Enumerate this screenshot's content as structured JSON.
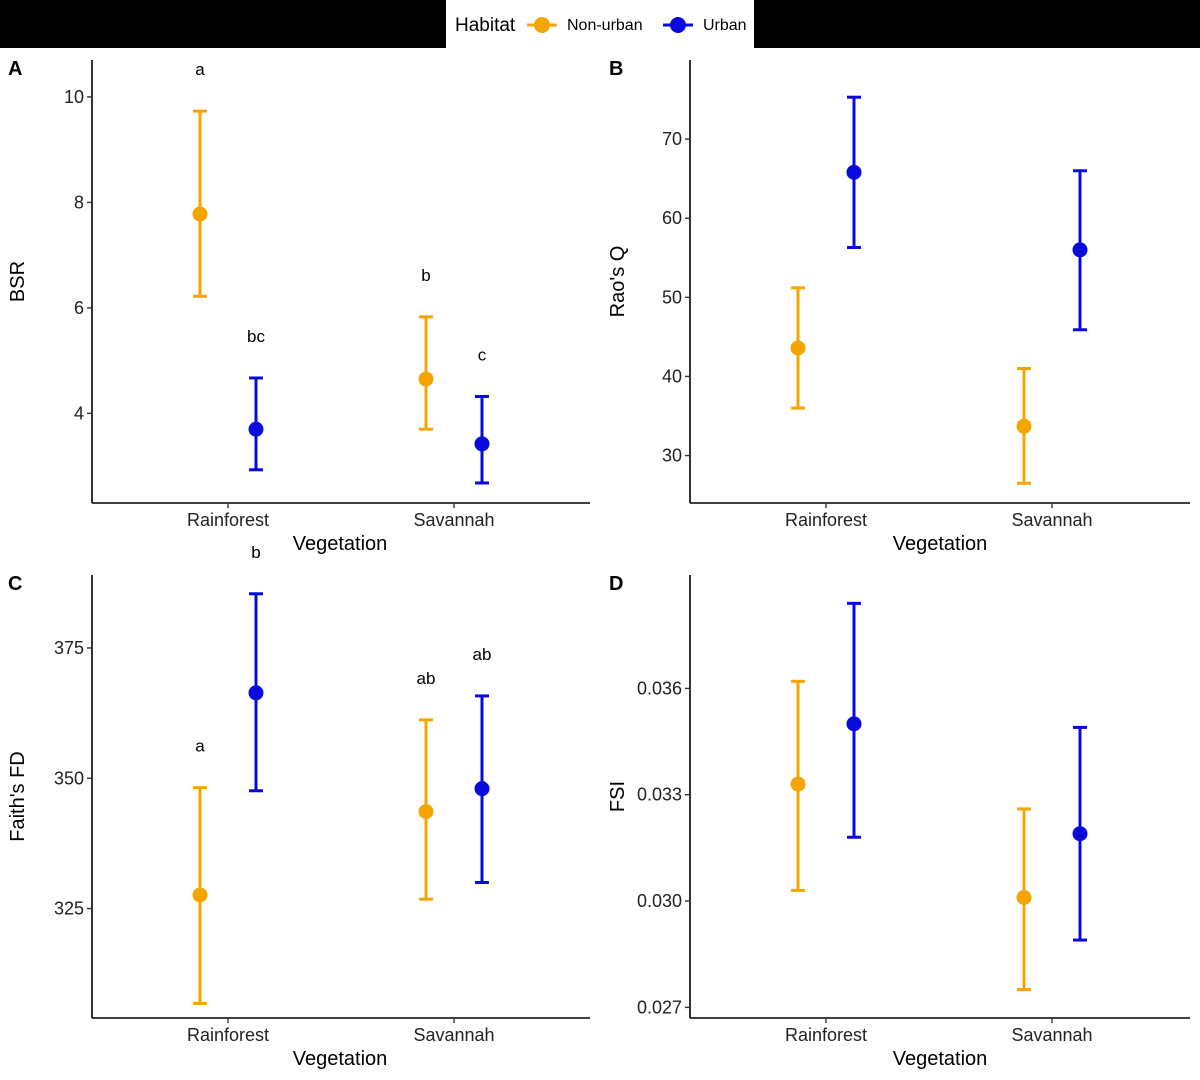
{
  "legend": {
    "title": "Habitat",
    "position": "top",
    "entries": [
      {
        "label": "Non-urban",
        "color": "#F5A500"
      },
      {
        "label": "Urban",
        "color": "#0A0ADD"
      }
    ]
  },
  "chart_data": [
    {
      "type": "scatter",
      "panel": "A",
      "title": "",
      "xlabel": "Vegetation",
      "ylabel": "BSR",
      "categories": [
        "Rainforest",
        "Savannah"
      ],
      "ylim": [
        2.3,
        10.7
      ],
      "yticks": [
        4,
        6,
        8,
        10
      ],
      "ytick_labels": [
        "4",
        "6",
        "8",
        "10"
      ],
      "series": [
        {
          "name": "Non-urban",
          "values": [
            7.78,
            4.65
          ],
          "lower": [
            6.22,
            3.7
          ],
          "upper": [
            9.73,
            5.83
          ],
          "letters": [
            "a",
            "b"
          ]
        },
        {
          "name": "Urban",
          "values": [
            3.7,
            3.42
          ],
          "lower": [
            2.93,
            2.68
          ],
          "upper": [
            4.67,
            4.32
          ],
          "letters": [
            "bc",
            "c"
          ]
        }
      ]
    },
    {
      "type": "scatter",
      "panel": "B",
      "title": "",
      "xlabel": "Vegetation",
      "ylabel": "Rao's Q",
      "categories": [
        "Rainforest",
        "Savannah"
      ],
      "ylim": [
        24,
        80
      ],
      "yticks": [
        30,
        40,
        50,
        60,
        70
      ],
      "ytick_labels": [
        "30",
        "40",
        "50",
        "60",
        "70"
      ],
      "series": [
        {
          "name": "Non-urban",
          "values": [
            43.6,
            33.7
          ],
          "lower": [
            36.0,
            26.5
          ],
          "upper": [
            51.2,
            41.0
          ],
          "letters": [
            "",
            ""
          ]
        },
        {
          "name": "Urban",
          "values": [
            65.8,
            56.0
          ],
          "lower": [
            56.3,
            45.9
          ],
          "upper": [
            75.3,
            66.0
          ],
          "letters": [
            "",
            ""
          ]
        }
      ]
    },
    {
      "type": "scatter",
      "panel": "C",
      "title": "",
      "xlabel": "Vegetation",
      "ylabel": "Faith's FD",
      "categories": [
        "Rainforest",
        "Savannah"
      ],
      "ylim": [
        304,
        389
      ],
      "yticks": [
        325,
        350,
        375
      ],
      "ytick_labels": [
        "325",
        "350",
        "375"
      ],
      "series": [
        {
          "name": "Non-urban",
          "values": [
            327.6,
            343.6
          ],
          "lower": [
            306.8,
            326.8
          ],
          "upper": [
            348.2,
            361.2
          ],
          "letters": [
            "a",
            "ab"
          ]
        },
        {
          "name": "Urban",
          "values": [
            366.4,
            348.0
          ],
          "lower": [
            347.6,
            330.0
          ],
          "upper": [
            385.4,
            365.8
          ],
          "letters": [
            "b",
            "ab"
          ]
        }
      ]
    },
    {
      "type": "scatter",
      "panel": "D",
      "title": "",
      "xlabel": "Vegetation",
      "ylabel": "FSI",
      "categories": [
        "Rainforest",
        "Savannah"
      ],
      "ylim": [
        0.0267,
        0.0392
      ],
      "yticks": [
        0.027,
        0.03,
        0.033,
        0.036
      ],
      "ytick_labels": [
        "0.027",
        "0.030",
        "0.033",
        "0.036"
      ],
      "series": [
        {
          "name": "Non-urban",
          "values": [
            0.0333,
            0.0301
          ],
          "lower": [
            0.0303,
            0.0275
          ],
          "upper": [
            0.0362,
            0.0326
          ],
          "letters": [
            "",
            ""
          ]
        },
        {
          "name": "Urban",
          "values": [
            0.035,
            0.0319
          ],
          "lower": [
            0.0318,
            0.0289
          ],
          "upper": [
            0.0384,
            0.0349
          ],
          "letters": [
            "",
            ""
          ]
        }
      ]
    }
  ]
}
